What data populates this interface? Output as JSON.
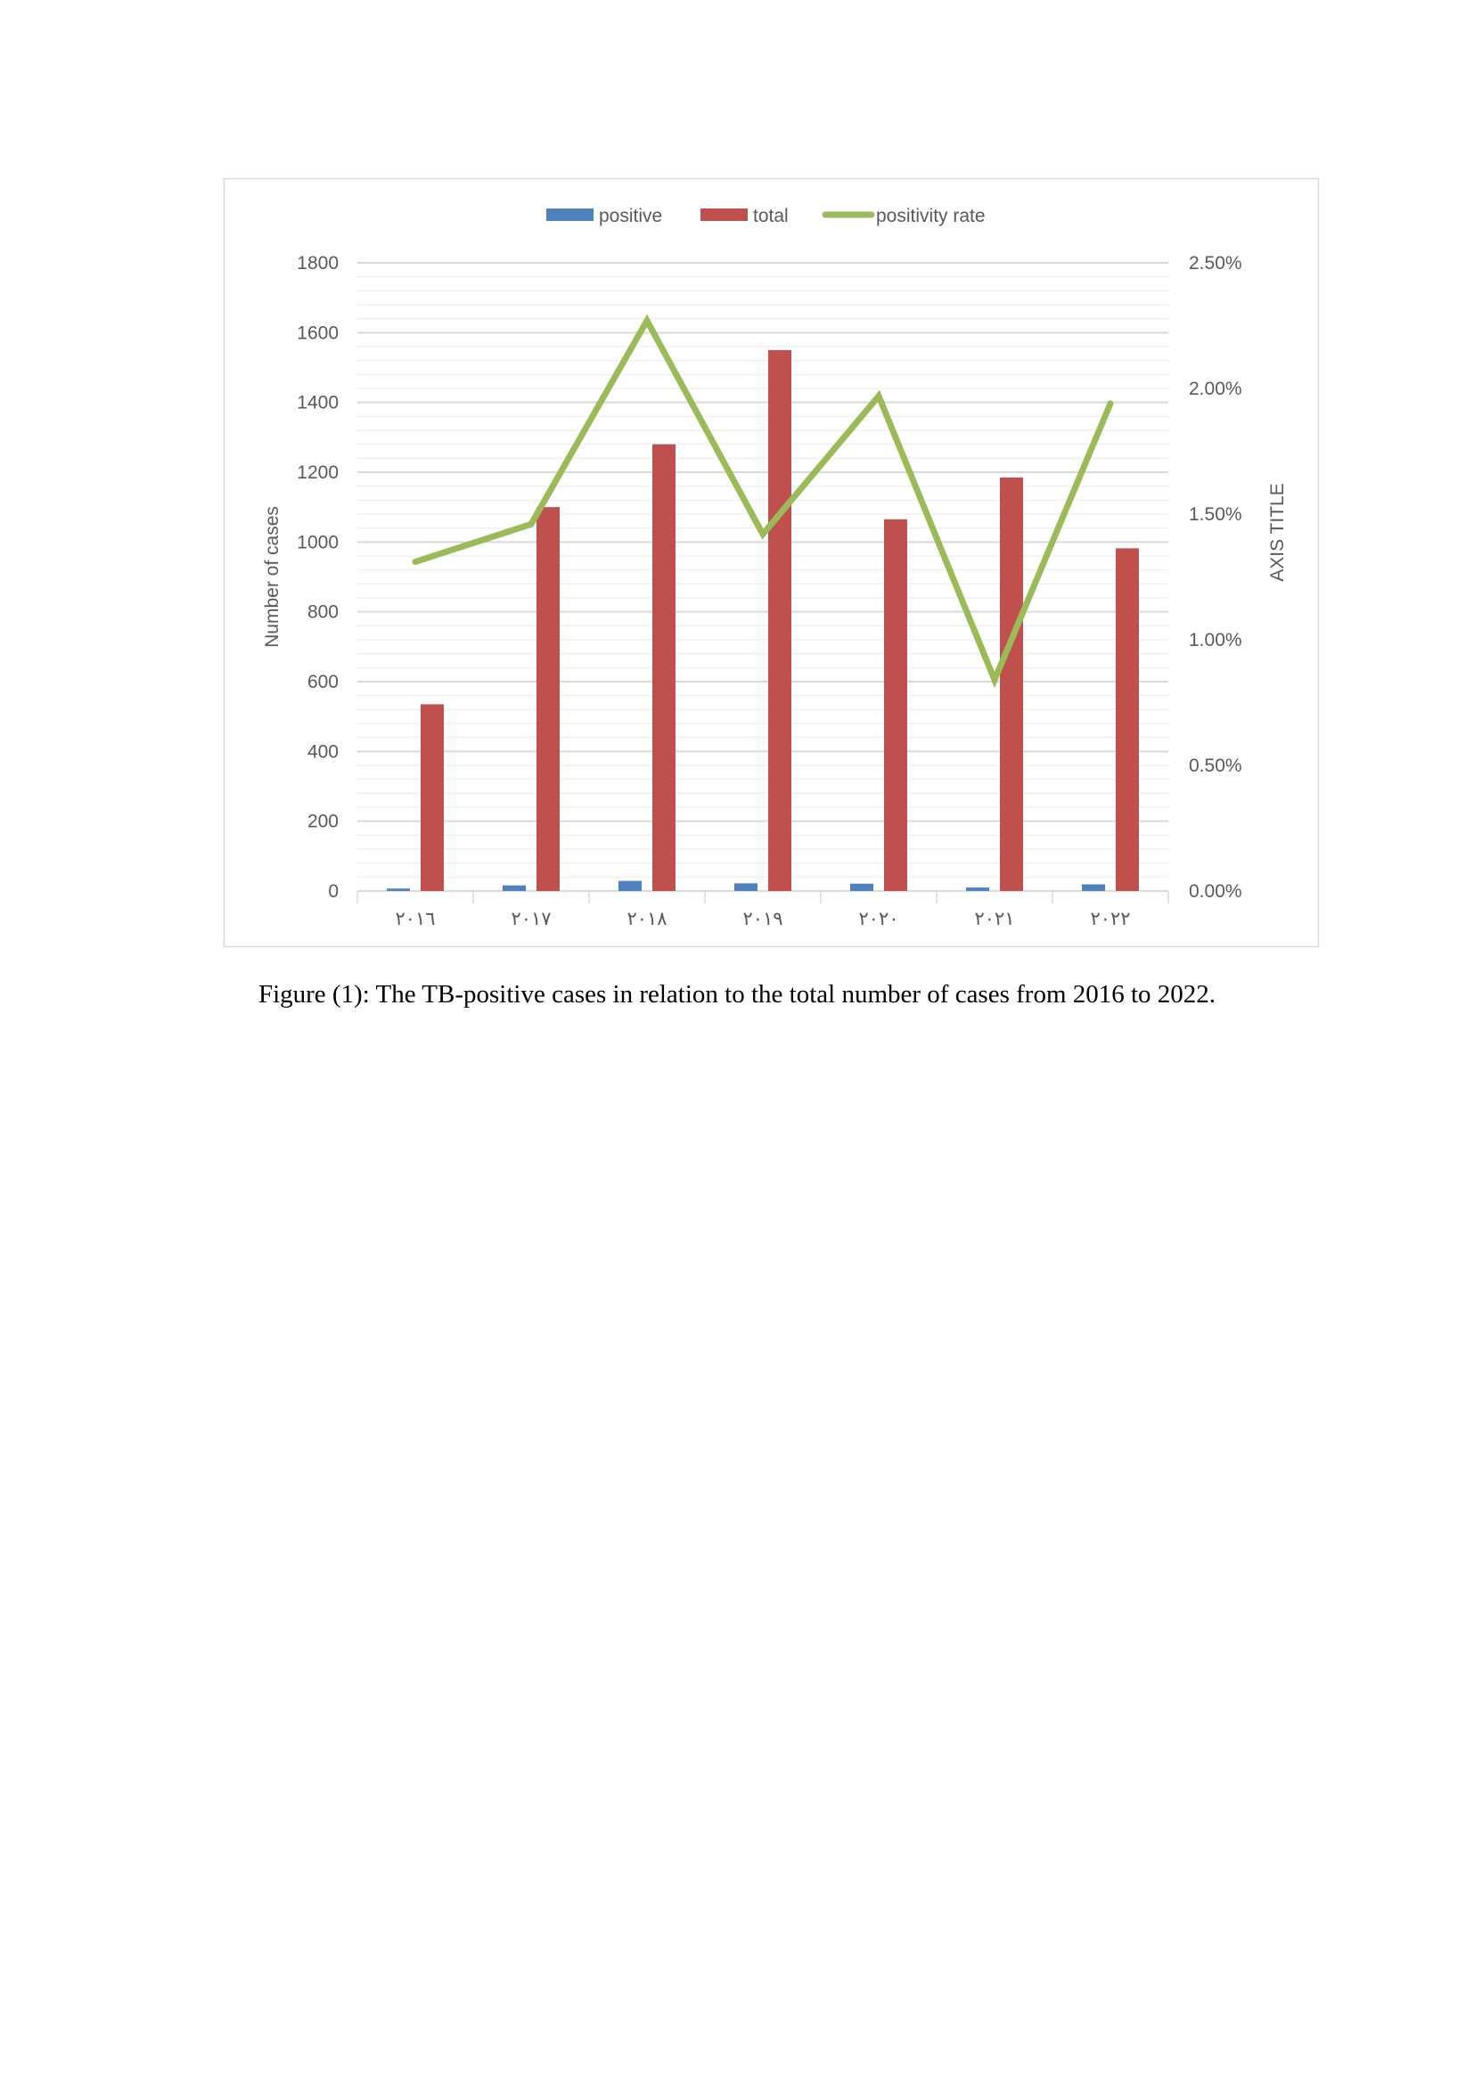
{
  "chart_data": {
    "type": "bar+line",
    "categories": [
      "٢٠١٦",
      "٢٠١٧",
      "٢٠١٨",
      "٢٠١٩",
      "٢٠٢٠",
      "٢٠٢١",
      "٢٠٢٢"
    ],
    "series": [
      {
        "name": "positive",
        "type": "bar",
        "axis": "left",
        "color": "#4f81bd",
        "values": [
          7,
          16,
          29,
          22,
          21,
          10,
          19
        ]
      },
      {
        "name": "total",
        "type": "bar",
        "axis": "left",
        "color": "#c0504d",
        "values": [
          535,
          1100,
          1280,
          1550,
          1065,
          1185,
          982
        ]
      },
      {
        "name": "positivity rate",
        "type": "line",
        "axis": "right",
        "color": "#9bbb59",
        "values": [
          1.31,
          1.46,
          2.27,
          1.42,
          1.97,
          0.84,
          1.94
        ]
      }
    ],
    "ylabel": "Number of cases",
    "y2label": "AXIS TITLE",
    "ylim": [
      0,
      1800
    ],
    "yticks": [
      "0",
      "200",
      "400",
      "600",
      "800",
      "1000",
      "1200",
      "1400",
      "1600",
      "1800"
    ],
    "y2lim": [
      0,
      2.5
    ],
    "y2ticks": [
      "0.00%",
      "0.50%",
      "1.00%",
      "1.50%",
      "2.00%",
      "2.50%"
    ],
    "grid": true,
    "legend": "top"
  },
  "caption": "Figure (1): The TB-positive cases in relation to the total number of cases from 2016 to 2022."
}
